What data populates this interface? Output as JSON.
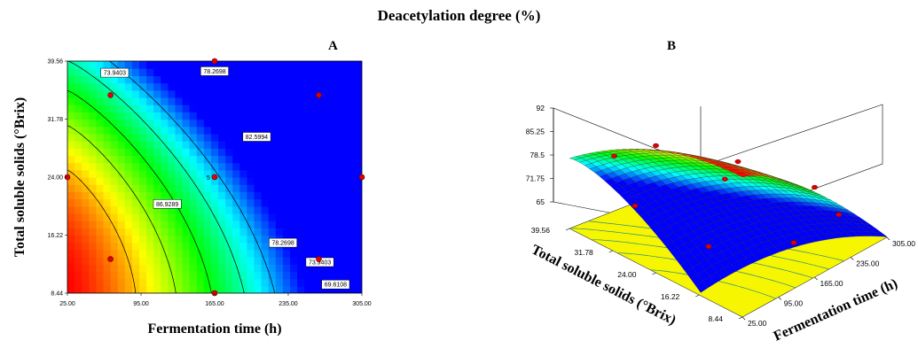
{
  "figure": {
    "title": "Deacetylation degree (%)"
  },
  "chart_data": [
    {
      "type": "heatmap",
      "panel_label": "A",
      "title": "",
      "xlabel": "Fermentation time (h)",
      "ylabel": "Total soluble solids (°Brix)",
      "x_ticks": [
        "25.00",
        "95.00",
        "165.00",
        "235.00",
        "305.00"
      ],
      "y_ticks": [
        "8.44",
        "16.22",
        "24.00",
        "31.78",
        "39.56"
      ],
      "xlim": [
        25,
        305
      ],
      "ylim": [
        8.44,
        39.56
      ],
      "colormap": [
        "#0000ff",
        "#00ffff",
        "#00ff00",
        "#ffff00",
        "#ff0000"
      ],
      "value_range": [
        65,
        92
      ],
      "contours": [
        {
          "level": "73.9403",
          "label_x": 70,
          "label_y": 38.0
        },
        {
          "level": "78.2698",
          "label_x": 165,
          "label_y": 38.2
        },
        {
          "level": "82.5994",
          "label_x": 205,
          "label_y": 29.4
        },
        {
          "level": "86.9289",
          "label_x": 120,
          "label_y": 20.4
        },
        {
          "level": "78.2698",
          "label_x": 230,
          "label_y": 15.2
        },
        {
          "level": "73.9403",
          "label_x": 265,
          "label_y": 12.6
        },
        {
          "level": "69.6108",
          "label_x": 280,
          "label_y": 9.6
        }
      ],
      "points": [
        {
          "x": 165,
          "y": 39.56
        },
        {
          "x": 66,
          "y": 35.0
        },
        {
          "x": 264,
          "y": 35.0
        },
        {
          "x": 25,
          "y": 24.0
        },
        {
          "x": 165,
          "y": 24.0
        },
        {
          "x": 305,
          "y": 24.0
        },
        {
          "x": 66,
          "y": 13.0
        },
        {
          "x": 264,
          "y": 13.0
        },
        {
          "x": 165,
          "y": 8.44
        }
      ],
      "center_label": "5"
    },
    {
      "type": "surface3d",
      "panel_label": "B",
      "title": "",
      "xlabel": "Fermentation time (h)",
      "ylabel": "Total soluble solids (°Brix)",
      "z_ticks": [
        "65",
        "71.75",
        "78.5",
        "85.25",
        "92"
      ],
      "x_ticks": [
        "25.00",
        "95.00",
        "165.00",
        "235.00",
        "305.00"
      ],
      "y_ticks": [
        "8.44",
        "16.22",
        "24.00",
        "31.78",
        "39.56"
      ],
      "zlim": [
        65,
        92
      ]
    }
  ]
}
